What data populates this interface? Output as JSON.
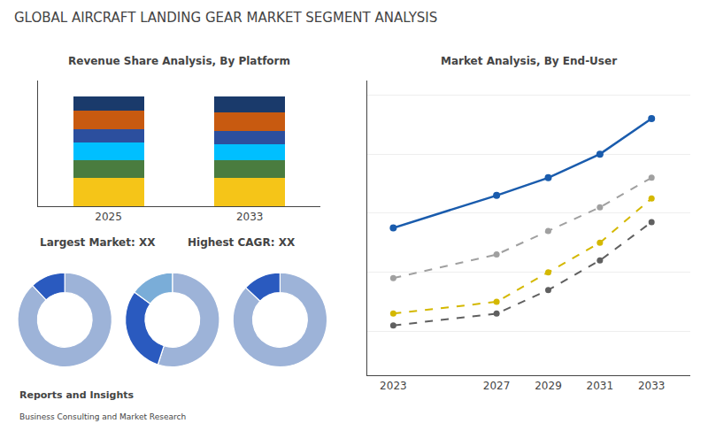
{
  "title": "GLOBAL AIRCRAFT LANDING GEAR MARKET SEGMENT ANALYSIS",
  "annotations": [
    "Largest Market: XX",
    "Highest CAGR: XX",
    "Reports and Insights",
    "Business Consulting and Market Research"
  ],
  "chart_data": [
    {
      "type": "bar",
      "title": "Revenue Share Analysis, By Platform",
      "categories": [
        "2025",
        "2033"
      ],
      "stacked": true,
      "series": [
        {
          "color": "#f5c518",
          "values": [
            0.26,
            0.26
          ]
        },
        {
          "color": "#4a7c3f",
          "values": [
            0.16,
            0.16
          ]
        },
        {
          "color": "#00bfff",
          "values": [
            0.16,
            0.15
          ]
        },
        {
          "color": "#2c4f9e",
          "values": [
            0.12,
            0.12
          ]
        },
        {
          "color": "#c85a10",
          "values": [
            0.17,
            0.17
          ]
        },
        {
          "color": "#1a3a6b",
          "values": [
            0.13,
            0.14
          ]
        }
      ],
      "ylim": [
        0,
        1.15
      ],
      "yticks": [],
      "grid": false,
      "tick_labels": "x"
    },
    {
      "type": "pie",
      "values": [
        0.88,
        0.12
      ],
      "colors": [
        "#9db3d8",
        "#2a5abf"
      ]
    },
    {
      "type": "pie",
      "values": [
        0.55,
        0.3,
        0.15
      ],
      "colors": [
        "#9db3d8",
        "#2a5abf",
        "#7aadd8"
      ]
    },
    {
      "type": "pie",
      "values": [
        0.87,
        0.13
      ],
      "colors": [
        "#9db3d8",
        "#2a5abf"
      ]
    },
    {
      "type": "line",
      "title": "Market Analysis, By End-User",
      "x": [
        2023,
        2027,
        2029,
        2031,
        2033
      ],
      "series": [
        {
          "color": "#1a5cad",
          "line_style": "solid",
          "marker": "circle",
          "values": [
            0.55,
            0.66,
            0.72,
            0.8,
            0.92
          ]
        },
        {
          "color": "#a0a0a0",
          "line_style": "dashed",
          "marker": "circle",
          "values": [
            0.38,
            0.46,
            0.54,
            0.62,
            0.72
          ]
        },
        {
          "color": "#d4b800",
          "line_style": "dashed",
          "marker": "circle",
          "values": [
            0.26,
            0.3,
            0.4,
            0.5,
            0.65
          ]
        },
        {
          "color": "#606060",
          "line_style": "dashed",
          "marker": "circle",
          "values": [
            0.22,
            0.26,
            0.34,
            0.44,
            0.57
          ]
        }
      ],
      "xlim": [
        2022,
        2034.5
      ],
      "xticks": [
        2023,
        2027,
        2029,
        2031,
        2033
      ],
      "ylim": [
        0.05,
        1.05
      ],
      "yticks": [
        0.2,
        0.4,
        0.6,
        0.8,
        1.0
      ],
      "grid": true,
      "tick_labels": "x"
    }
  ]
}
